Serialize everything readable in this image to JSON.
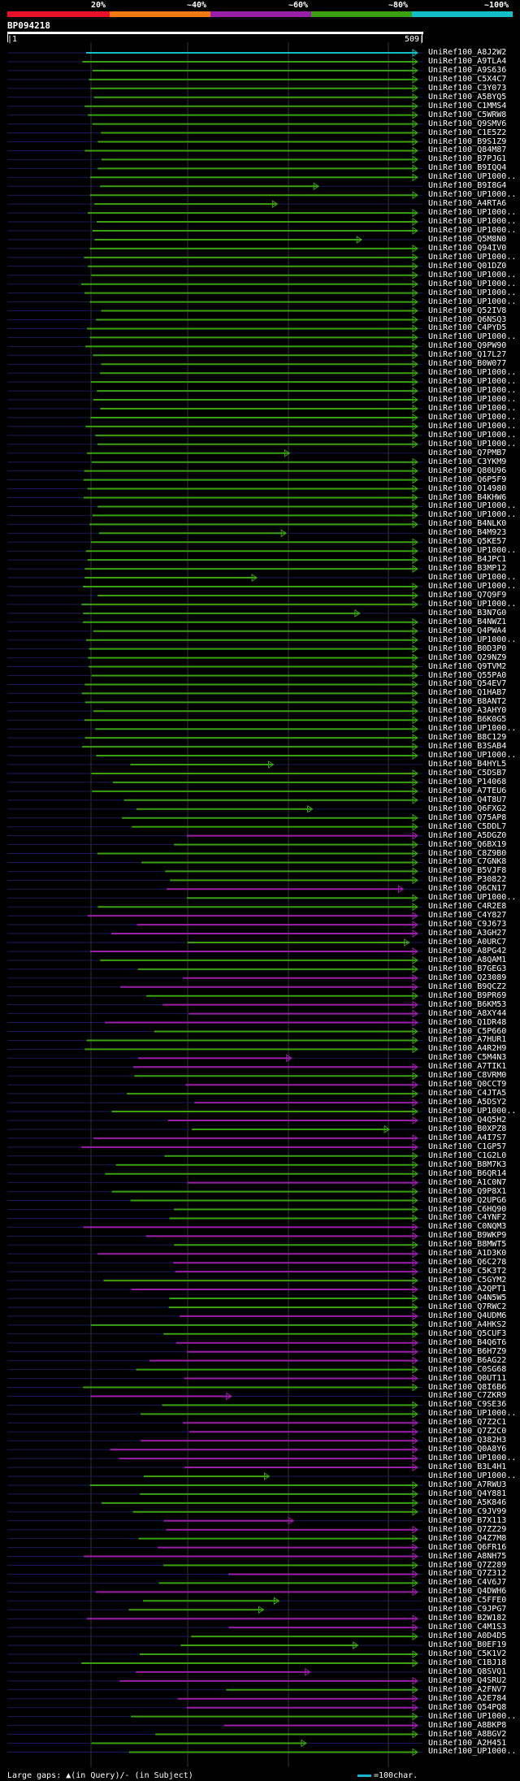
{
  "legend": {
    "labels": [
      "20%",
      "~40%",
      "~60%",
      "~80%",
      "~100%"
    ],
    "colors": [
      "#e8102a",
      "#f07a10",
      "#9a1fa8",
      "#3aa010",
      "#12bfc8"
    ]
  },
  "query": {
    "title": "BP094218",
    "start": "|1",
    "end": "509|",
    "length": 509
  },
  "hits": [
    "UniRef100_A8J2W2",
    "UniRef100_A9TLA4",
    "UniRef100_A9S636",
    "UniRef100_C5X4C7",
    "UniRef100_C3Y073",
    "UniRef100_A5BYQ5",
    "UniRef100_C1MMS4",
    "UniRef100_C5WRW8",
    "UniRef100_Q9SMV6",
    "UniRef100_C1E5Z2",
    "UniRef100_B9S1Z9",
    "UniRef100_Q84M87",
    "UniRef100_B7PJG1",
    "UniRef100_B9IQQ4",
    "UniRef100_UP1000..",
    "UniRef100_B9I8G4",
    "UniRef100_UP1000..",
    "UniRef100_A4RTA6",
    "UniRef100_UP1000..",
    "UniRef100_UP1000..",
    "UniRef100_UP1000..",
    "UniRef100_Q5M8N0",
    "UniRef100_Q94IV0",
    "UniRef100_UP1000..",
    "UniRef100_Q01DZ0",
    "UniRef100_UP1000..",
    "UniRef100_UP1000..",
    "UniRef100_UP1000..",
    "UniRef100_UP1000..",
    "UniRef100_Q52IV8",
    "UniRef100_Q6NSQ3",
    "UniRef100_C4PYD5",
    "UniRef100_UP1000..",
    "UniRef100_Q9PW90",
    "UniRef100_Q17L27",
    "UniRef100_B0W077",
    "UniRef100_UP1000..",
    "UniRef100_UP1000..",
    "UniRef100_UP1000..",
    "UniRef100_UP1000..",
    "UniRef100_UP1000..",
    "UniRef100_UP1000..",
    "UniRef100_UP1000..",
    "UniRef100_UP1000..",
    "UniRef100_UP1000..",
    "UniRef100_Q7PMB7",
    "UniRef100_C3YKM9",
    "UniRef100_Q80U96",
    "UniRef100_Q6P5F9",
    "UniRef100_O14980",
    "UniRef100_B4KHW6",
    "UniRef100_UP1000..",
    "UniRef100_UP1000..",
    "UniRef100_B4NLK0",
    "UniRef100_B4M923",
    "UniRef100_Q5KE57",
    "UniRef100_UP1000..",
    "UniRef100_B4JPC1",
    "UniRef100_B3MP12",
    "UniRef100_UP1000..",
    "UniRef100_UP1000..",
    "UniRef100_Q7Q9F9",
    "UniRef100_UP1000..",
    "UniRef100_B3N7G0",
    "UniRef100_B4NWZ1",
    "UniRef100_Q4PWA4",
    "UniRef100_UP1000..",
    "UniRef100_B0D3P0",
    "UniRef100_Q29NZ9",
    "UniRef100_Q9TVM2",
    "UniRef100_Q55PA0",
    "UniRef100_Q54EV7",
    "UniRef100_Q1HAB7",
    "UniRef100_B8ANT2",
    "UniRef100_A3AHY0",
    "UniRef100_B6K0G5",
    "UniRef100_UP1000..",
    "UniRef100_B8C129",
    "UniRef100_B3SAB4",
    "UniRef100_UP1000..",
    "UniRef100_B4HYL5",
    "UniRef100_C5DSB7",
    "UniRef100_P14068",
    "UniRef100_A7TEU6",
    "UniRef100_Q4T8U7",
    "UniRef100_Q6FXG2",
    "UniRef100_Q75AP8",
    "UniRef100_C5DDL7",
    "UniRef100_A5DGZ0",
    "UniRef100_Q6BX19",
    "UniRef100_C8Z9B0",
    "UniRef100_C7GNK8",
    "UniRef100_B5VJF8",
    "UniRef100_P30822",
    "UniRef100_Q6CN17",
    "UniRef100_UP1000..",
    "UniRef100_C4R2E8",
    "UniRef100_C4Y827",
    "UniRef100_C9J673",
    "UniRef100_A3GH27",
    "UniRef100_A0URC7",
    "UniRef100_A8PG42",
    "UniRef100_A8QAM1",
    "UniRef100_B7GEG3",
    "UniRef100_Q23089",
    "UniRef100_B9QCZ2",
    "UniRef100_B9PR69",
    "UniRef100_B6KM53",
    "UniRef100_A8XY44",
    "UniRef100_Q1DR48",
    "UniRef100_C5P660",
    "UniRef100_A7HUR1",
    "UniRef100_A4R2H9",
    "UniRef100_C5M4N3",
    "UniRef100_A7TIK1",
    "UniRef100_C8VRM0",
    "UniRef100_Q0CCT9",
    "UniRef100_C4JTA5",
    "UniRef100_A5DSY2",
    "UniRef100_UP1000..",
    "UniRef100_Q4Q5H2",
    "UniRef100_B0XPZ8",
    "UniRef100_A4I7S7",
    "UniRef100_C1GP57",
    "UniRef100_C1G2L0",
    "UniRef100_B8M7K3",
    "UniRef100_B6QR14",
    "UniRef100_A1C0N7",
    "UniRef100_Q9P8X1",
    "UniRef100_Q2UPG6",
    "UniRef100_C6HQ90",
    "UniRef100_C4YNF2",
    "UniRef100_C0NQM3",
    "UniRef100_B9WKP9",
    "UniRef100_B8MWT5",
    "UniRef100_A1D3K0",
    "UniRef100_Q6C278",
    "UniRef100_C5K3T2",
    "UniRef100_C5GYM2",
    "UniRef100_A2QPT1",
    "UniRef100_Q4N5W5",
    "UniRef100_Q7RWC2",
    "UniRef100_Q4UDM6",
    "UniRef100_A4HKS2",
    "UniRef100_Q5CUF3",
    "UniRef100_B4Q6T6",
    "UniRef100_B6H7Z9",
    "UniRef100_B6AG22",
    "UniRef100_C0SG68",
    "UniRef100_Q0UT11",
    "UniRef100_Q8I6B6",
    "UniRef100_C7ZKR9",
    "UniRef100_C9SE36",
    "UniRef100_UP1000..",
    "UniRef100_Q7Z2C1",
    "UniRef100_Q7Z2C0",
    "UniRef100_Q382H3",
    "UniRef100_Q0A8Y6",
    "UniRef100_UP1000..",
    "UniRef100_B3L4H1",
    "UniRef100_UP1000..",
    "UniRef100_A7RWU3",
    "UniRef100_Q4Y881",
    "UniRef100_A5K846",
    "UniRef100_C9JV99",
    "UniRef100_B7X113",
    "UniRef100_Q7ZZ29",
    "UniRef100_Q4Z7M8",
    "UniRef100_Q6FR16",
    "UniRef100_A8NH75",
    "UniRef100_Q7Z289",
    "UniRef100_Q7Z312",
    "UniRef100_C4V6J7",
    "UniRef100_Q4DWH6",
    "UniRef100_C5FFE0",
    "UniRef100_C9JPG7",
    "UniRef100_B2W182",
    "UniRef100_C4M1S3",
    "UniRef100_A0D4D5",
    "UniRef100_B0EF19",
    "UniRef100_C5K1V2",
    "UniRef100_C1BJ18",
    "UniRef100_Q8SVQ1",
    "UniRef100_Q4SRU2",
    "UniRef100_A2FNV7",
    "UniRef100_A2E784",
    "UniRef100_Q54PQ8",
    "UniRef100_UP1000..",
    "UniRef100_A8BKP8",
    "UniRef100_A8BGV2",
    "UniRef100_A2H451",
    "UniRef100_UP1000.."
  ],
  "footer": {
    "large_gaps_label": "Large gaps: ▲(in Query)/- (in Subject)",
    "scale_label": "=100char."
  }
}
